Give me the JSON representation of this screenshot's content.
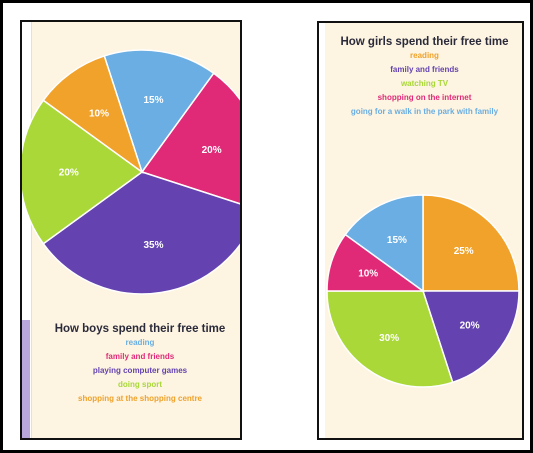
{
  "chart_data": [
    {
      "type": "pie",
      "title": "How boys spend their free time",
      "categories": [
        "reading",
        "family and friends",
        "playing computer games",
        "doing sport",
        "shopping at the shopping centre"
      ],
      "values": [
        15,
        20,
        35,
        20,
        10
      ],
      "labels": [
        "15%",
        "20%",
        "35%",
        "20%",
        "10%"
      ],
      "colors": [
        "#6aaee3",
        "#e02a78",
        "#6443b0",
        "#a9d838",
        "#f0a22a"
      ],
      "legend_position": "bottom"
    },
    {
      "type": "pie",
      "title": "How girls spend their free time",
      "categories": [
        "reading",
        "family and friends",
        "watching TV",
        "shopping on the internet",
        "going for a walk in the park with family"
      ],
      "values": [
        25,
        20,
        30,
        10,
        15
      ],
      "labels": [
        "25%",
        "20%",
        "30%",
        "10%",
        "15%"
      ],
      "colors": [
        "#f0a22a",
        "#6443b0",
        "#a9d838",
        "#e02a78",
        "#6aaee3"
      ],
      "legend_colors": [
        "#f0a22a",
        "#6443b0",
        "#a9d838",
        "#e02a78",
        "#6aaee3"
      ],
      "legend_position": "top"
    }
  ]
}
